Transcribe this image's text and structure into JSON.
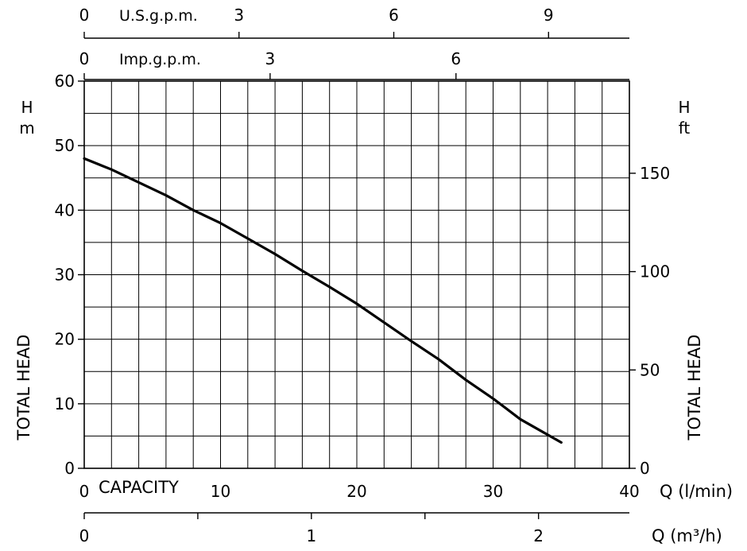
{
  "chart_data": {
    "type": "line",
    "title": "",
    "xlabel": "CAPACITY",
    "x_unit_label": "Q (l/min)",
    "xlim": [
      0,
      40
    ],
    "x_ticks": [
      "0",
      "10",
      "20",
      "30",
      "40"
    ],
    "ylabel": "TOTAL HEAD",
    "y_unit_label": [
      "H",
      "m"
    ],
    "ylim": [
      0,
      60
    ],
    "y_ticks": [
      "0",
      "10",
      "20",
      "30",
      "40",
      "50",
      "60"
    ],
    "grid": true,
    "secondary_axes": {
      "right": {
        "label": "TOTAL HEAD",
        "unit_label": [
          "H",
          "ft"
        ],
        "ticks": [
          {
            "value": 0,
            "label": "0"
          },
          {
            "value": 50,
            "label": "50"
          },
          {
            "value": 100,
            "label": "100"
          },
          {
            "value": 150,
            "label": "150"
          }
        ],
        "conversion_per_primary": 3.2808
      },
      "bottom_m3h": {
        "unit_label": "Q (m³/h)",
        "ticks": [
          {
            "value": 0,
            "label": "0"
          },
          {
            "value": 0.5,
            "label": ""
          },
          {
            "value": 1,
            "label": "1"
          },
          {
            "value": 1.5,
            "label": ""
          },
          {
            "value": 2,
            "label": "2"
          }
        ],
        "conversion_per_primary": 0.06
      },
      "top_usgpm": {
        "unit_label": "U.S.g.p.m.",
        "ticks": [
          {
            "value": 0,
            "label": "0"
          },
          {
            "value": 3,
            "label": "3"
          },
          {
            "value": 6,
            "label": "6"
          },
          {
            "value": 9,
            "label": "9"
          }
        ],
        "conversion_per_primary": 0.26417
      },
      "top_impgpm": {
        "unit_label": "Imp.g.p.m.",
        "ticks": [
          {
            "value": 0,
            "label": "0"
          },
          {
            "value": 3,
            "label": "3"
          },
          {
            "value": 6,
            "label": "6"
          }
        ],
        "conversion_per_primary": 0.21997
      }
    },
    "series": [
      {
        "x": [
          0,
          2,
          4,
          6,
          8,
          10,
          12,
          14,
          16,
          18,
          20,
          22,
          24,
          26,
          28,
          30,
          32,
          35
        ],
        "y": [
          48,
          46.3,
          44.3,
          42.3,
          40,
          38,
          35.6,
          33.2,
          30.6,
          28.1,
          25.5,
          22.6,
          19.7,
          16.9,
          13.7,
          10.8,
          7.6,
          4
        ]
      }
    ]
  }
}
